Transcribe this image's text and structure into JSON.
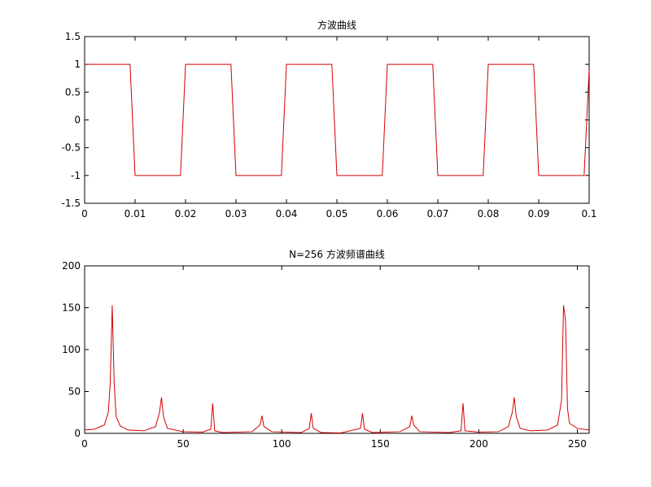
{
  "chart_data": [
    {
      "type": "line",
      "title": "方波曲线",
      "color": "#d40000",
      "x": [
        0,
        0.009,
        0.01,
        0.019,
        0.02,
        0.029,
        0.03,
        0.039,
        0.04,
        0.049,
        0.05,
        0.059,
        0.06,
        0.069,
        0.07,
        0.079,
        0.08,
        0.089,
        0.09,
        0.099,
        0.1
      ],
      "values": [
        1,
        1,
        -1,
        -1,
        1,
        1,
        -1,
        -1,
        1,
        1,
        -1,
        -1,
        1,
        1,
        -1,
        -1,
        1,
        1,
        -1,
        -1,
        0.9
      ],
      "xlim": [
        0,
        0.1
      ],
      "xticks": [
        0,
        0.01,
        0.02,
        0.03,
        0.04,
        0.05,
        0.06,
        0.07,
        0.08,
        0.09,
        0.1
      ],
      "ylim": [
        -1.5,
        1.5
      ],
      "yticks": [
        -1.5,
        -1,
        -0.5,
        0,
        0.5,
        1,
        1.5
      ]
    },
    {
      "type": "line",
      "title": "N=256 方波频谱曲线",
      "color": "#d40000",
      "x": [
        0,
        5,
        10,
        12,
        13,
        14,
        15,
        16,
        18,
        22,
        30,
        36,
        38,
        39,
        40,
        42,
        50,
        60,
        64,
        65,
        66,
        70,
        85,
        89,
        90,
        91,
        95,
        110,
        114,
        115,
        116,
        120,
        130,
        140,
        141,
        142,
        146,
        160,
        165,
        166,
        167,
        170,
        185,
        191,
        192,
        193,
        200,
        210,
        215,
        217,
        218,
        219,
        221,
        226,
        235,
        240,
        242,
        243,
        244,
        245,
        246,
        250,
        256
      ],
      "values": [
        4,
        5,
        10,
        25,
        60,
        153,
        60,
        20,
        9,
        4,
        3,
        8,
        25,
        43,
        20,
        6,
        2,
        1.5,
        5,
        36,
        3,
        1,
        2,
        10,
        21,
        8,
        2,
        1,
        6,
        24,
        6,
        1,
        0.5,
        6,
        24,
        5,
        1,
        2,
        8,
        21,
        10,
        2,
        1,
        3,
        36,
        3,
        1.5,
        2,
        8,
        25,
        43,
        20,
        6,
        3,
        4,
        10,
        40,
        153,
        135,
        30,
        12,
        6,
        4
      ],
      "xlim": [
        0,
        256
      ],
      "xticks": [
        0,
        50,
        100,
        150,
        200,
        250
      ],
      "ylim": [
        0,
        200
      ],
      "yticks": [
        0,
        50,
        100,
        150,
        200
      ]
    }
  ]
}
